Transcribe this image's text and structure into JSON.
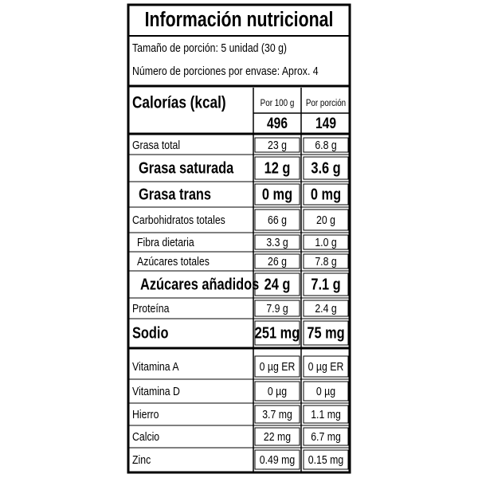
{
  "title": "Información nutricional",
  "serving": [
    "Tamaño de porción: 5 unidad (30 g)",
    "Número de porciones por envase: Aprox. 4"
  ],
  "calories": {
    "label": "Calorías (kcal)",
    "headers": [
      "Por 100 g",
      "Por porción"
    ],
    "values": [
      "496",
      "149"
    ]
  },
  "rows": [
    [
      "Grasa total",
      "23 g",
      "6.8 g"
    ],
    [
      "Grasa saturada",
      "12 g",
      "3.6 g"
    ],
    [
      "Grasa trans",
      "0 mg",
      "0 mg"
    ],
    [
      "Carbohidratos totales",
      "66 g",
      "20 g"
    ],
    [
      "Fibra dietaria",
      "3.3 g",
      "1.0 g"
    ],
    [
      "Azúcares totales",
      "26 g",
      "7.8 g"
    ],
    [
      "Azúcares añadidos",
      "24 g",
      "7.1 g"
    ],
    [
      "Proteína",
      "7.9 g",
      "2.4 g"
    ],
    [
      "Sodio",
      "251 mg",
      "75 mg"
    ]
  ],
  "vitamins": [
    [
      "Vitamina A",
      "0 µg ER",
      "0 µg ER"
    ],
    [
      "Vitamina D",
      "0 µg",
      "0 µg"
    ],
    [
      "Hierro",
      "3.7 mg",
      "1.1 mg"
    ],
    [
      "Calcio",
      "22 mg",
      "6.7 mg"
    ],
    [
      "Zinc",
      "0.49 mg",
      "0.15 mg"
    ]
  ]
}
